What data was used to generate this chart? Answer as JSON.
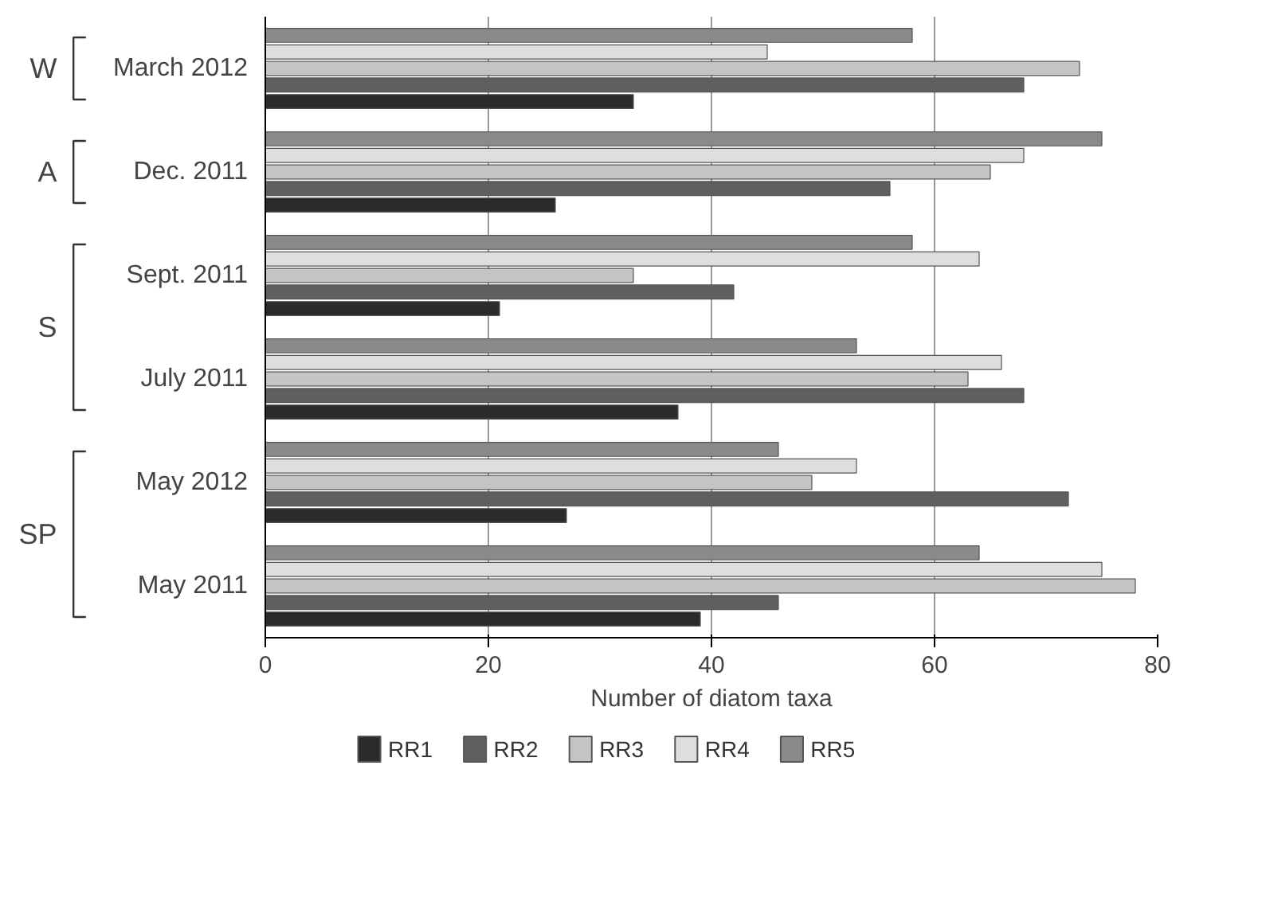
{
  "chart_data": {
    "type": "bar",
    "orientation": "horizontal",
    "xlabel": "Number of diatom taxa",
    "categories": [
      "March 2012",
      "Dec. 2011",
      "Sept. 2011",
      "July 2011",
      "May 2012",
      "May 2011"
    ],
    "series": [
      {
        "name": "RR1",
        "color": "#2b2b2b",
        "values": [
          33,
          26,
          21,
          37,
          27,
          39
        ]
      },
      {
        "name": "RR2",
        "color": "#5f5f5f",
        "values": [
          68,
          56,
          42,
          68,
          72,
          46
        ]
      },
      {
        "name": "RR3",
        "color": "#c4c4c4",
        "values": [
          73,
          65,
          33,
          63,
          49,
          78
        ]
      },
      {
        "name": "RR4",
        "color": "#dedede",
        "values": [
          45,
          68,
          64,
          66,
          53,
          75
        ]
      },
      {
        "name": "RR5",
        "color": "#8a8a8a",
        "values": [
          58,
          75,
          58,
          53,
          46,
          64
        ]
      }
    ],
    "xlim": [
      0,
      80
    ],
    "xticks": [
      0,
      20,
      40,
      60,
      80
    ],
    "grid": "x",
    "legend": "bottom",
    "annotations": [
      "W",
      "A",
      "S",
      "SP"
    ]
  }
}
